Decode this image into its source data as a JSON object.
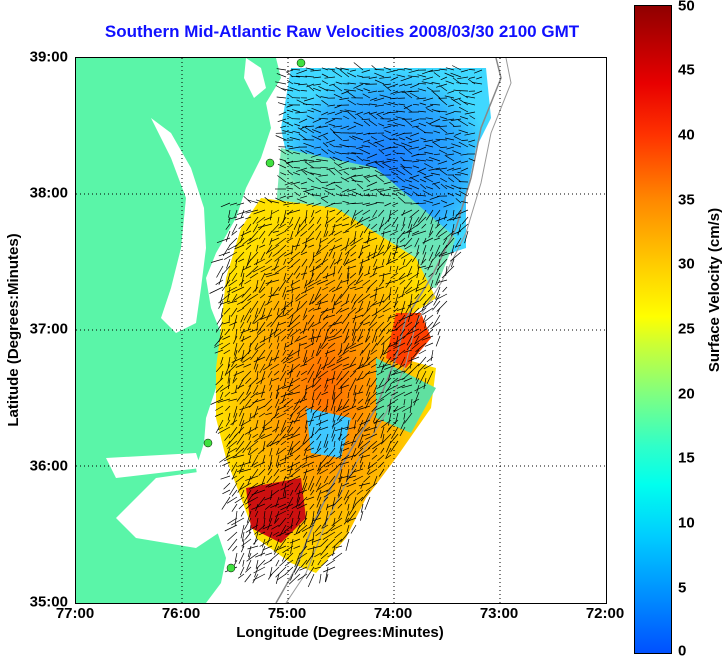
{
  "title": "Southern Mid-Atlantic Raw Velocities 2008/03/30 2100 GMT",
  "xlabel": "Longitude (Degrees:Minutes)",
  "ylabel": "Latitude (Degrees:Minutes)",
  "x_ticks": [
    "77:00",
    "76:00",
    "75:00",
    "74:00",
    "73:00",
    "72:00"
  ],
  "y_ticks": [
    "39:00",
    "38:00",
    "37:00",
    "36:00",
    "35:00"
  ],
  "colorbar": {
    "label": "Surface Velocity (cm/s)",
    "ticks": [
      "50",
      "45",
      "40",
      "35",
      "30",
      "25",
      "20",
      "15",
      "10",
      "5",
      "0"
    ],
    "range": [
      0,
      50
    ]
  },
  "map": {
    "lon_range": [
      -77,
      -72
    ],
    "lat_range": [
      35,
      39
    ],
    "land_color": "#5af5a8",
    "water_color": "#ffffff",
    "grid": "dotted"
  }
}
